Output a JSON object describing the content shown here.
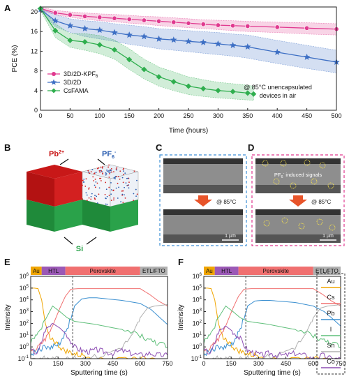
{
  "panels": {
    "A": "A",
    "B": "B",
    "C": "C",
    "D": "D",
    "E": "E",
    "F": "F"
  },
  "panelB": {
    "pb": "Pb",
    "pb_sup": "2+",
    "pf": "PF",
    "pf_sub": "6",
    "pf_sup": "-",
    "si": "Si"
  },
  "panelC": {
    "temp": "@ 85°C",
    "scale": "1 µm"
  },
  "panelD": {
    "signals": "PF",
    "signals_sub": "6",
    "signals_sup": "-",
    "signals_rest": " induced signals",
    "temp": "@ 85°C",
    "scale": "1 µm"
  },
  "colors": {
    "kpf6": "#e0398f",
    "twod": "#3d6fc4",
    "csfama": "#2fae4e",
    "au": "#f0a500",
    "cs": "#f07070",
    "pb": "#3a8fd0",
    "i": "#5fbf7a",
    "sn": "#b0b0b0",
    "co": "#8e4fb4"
  },
  "chart_data": [
    {
      "type": "line",
      "ylabel": "PCE (%)",
      "xlabel": "Time (hours)",
      "xlim": [
        0,
        500
      ],
      "ylim": [
        0,
        21
      ],
      "xticks": [
        0,
        50,
        100,
        150,
        200,
        250,
        300,
        350,
        400,
        450,
        500
      ],
      "yticks": [
        0,
        4,
        8,
        12,
        16,
        20
      ],
      "legend": [
        {
          "name": "3D/2D-KPF",
          "sub": "6"
        },
        {
          "name": "3D/2D",
          "sub": ""
        },
        {
          "name": "CsFAMA",
          "sub": ""
        }
      ],
      "annotation": [
        "@ 85°C unencapsulated",
        "devices in air"
      ],
      "series": [
        {
          "name": "3D/2D-KPF6",
          "x": [
            0,
            25,
            50,
            75,
            100,
            125,
            150,
            175,
            200,
            225,
            250,
            275,
            300,
            325,
            350,
            400,
            450,
            500
          ],
          "y": [
            20.7,
            19.8,
            19.4,
            19.1,
            18.9,
            18.7,
            18.5,
            18.3,
            18.1,
            17.9,
            17.7,
            17.5,
            17.3,
            17.2,
            17.1,
            16.9,
            16.7,
            16.5
          ],
          "lo": [
            20.4,
            19.4,
            18.9,
            18.5,
            18.2,
            18.0,
            17.7,
            17.5,
            17.2,
            17.0,
            16.8,
            16.6,
            16.4,
            16.2,
            16.0,
            15.8,
            15.5,
            15.3
          ],
          "hi": [
            21.0,
            20.3,
            20.0,
            19.8,
            19.6,
            19.5,
            19.3,
            19.1,
            19.0,
            18.8,
            18.6,
            18.4,
            18.3,
            18.2,
            18.1,
            17.9,
            17.8,
            17.6
          ]
        },
        {
          "name": "3D/2D",
          "x": [
            0,
            25,
            50,
            75,
            100,
            125,
            150,
            175,
            200,
            225,
            250,
            275,
            300,
            325,
            350,
            400,
            450,
            500
          ],
          "y": [
            20.5,
            18.2,
            17.2,
            16.6,
            16.3,
            15.8,
            15.3,
            15.0,
            14.5,
            14.3,
            14.0,
            13.8,
            13.5,
            13.2,
            12.9,
            11.8,
            10.8,
            9.8
          ],
          "lo": [
            20.2,
            17.0,
            15.8,
            15.0,
            14.5,
            14.0,
            13.4,
            13.0,
            12.5,
            12.2,
            11.9,
            11.6,
            11.3,
            11.0,
            10.6,
            9.5,
            8.5,
            7.6
          ],
          "hi": [
            20.8,
            19.4,
            18.6,
            18.2,
            18.0,
            17.6,
            17.3,
            17.0,
            16.6,
            16.4,
            16.2,
            16.0,
            15.8,
            15.5,
            15.3,
            14.2,
            13.2,
            12.2
          ]
        },
        {
          "name": "CsFAMA",
          "x": [
            0,
            25,
            50,
            75,
            100,
            125,
            150,
            175,
            200,
            225,
            250,
            275,
            300,
            325,
            350,
            360
          ],
          "y": [
            20.7,
            16.2,
            14.2,
            13.9,
            13.3,
            12.3,
            10.3,
            8.3,
            6.8,
            5.8,
            4.9,
            4.4,
            4.0,
            3.8,
            3.5,
            3.3
          ],
          "lo": [
            20.3,
            14.8,
            12.8,
            12.2,
            11.5,
            10.4,
            8.3,
            6.4,
            4.9,
            4.0,
            3.2,
            2.8,
            2.5,
            2.3,
            2.1,
            2.0
          ],
          "hi": [
            21.0,
            17.6,
            15.6,
            15.6,
            15.2,
            14.3,
            12.5,
            10.4,
            8.8,
            7.8,
            6.8,
            6.2,
            5.7,
            5.4,
            5.1,
            4.9
          ]
        }
      ]
    },
    {
      "type": "line",
      "ylabel": "Intensity",
      "xlabel": "Sputtering time (s)",
      "xlim": [
        0,
        750
      ],
      "ylim_log10": [
        -1,
        6
      ],
      "xticks": [
        0,
        150,
        300,
        450,
        600,
        750
      ],
      "regions": [
        {
          "label": "Au",
          "x0": 0,
          "x1": 60,
          "color": "#f0a500"
        },
        {
          "label": "HTL",
          "x0": 60,
          "x1": 190,
          "color": "#9b59b6"
        },
        {
          "label": "Perovskite",
          "x0": 190,
          "x1": 600,
          "color": "#f07070"
        },
        {
          "label": "ETL/FTO",
          "x0": 600,
          "x1": 750,
          "color": "#b0b0b0"
        }
      ],
      "divider_x": 230,
      "series": [
        {
          "name": "Au",
          "x": [
            0,
            20,
            40,
            60,
            80,
            100,
            140,
            180,
            220,
            260,
            300,
            400,
            500,
            600,
            700,
            750
          ],
          "y": [
            100000.0,
            100000.0,
            90000.0,
            10000.0,
            100.0,
            10,
            2,
            0.5,
            0.3,
            0.2,
            0.2,
            0.1,
            0.1,
            0.1,
            0.1,
            0.1
          ]
        },
        {
          "name": "Cs",
          "x": [
            0,
            40,
            80,
            120,
            160,
            190,
            220,
            260,
            300,
            400,
            500,
            600,
            650,
            700,
            750
          ],
          "y": [
            0.3,
            1,
            5,
            60,
            2000,
            20000.0,
            80000.0,
            90000.0,
            90000.0,
            90000.0,
            90000.0,
            90000.0,
            30000.0,
            8000,
            3000
          ]
        },
        {
          "name": "Pb",
          "x": [
            0,
            40,
            80,
            120,
            160,
            200,
            240,
            280,
            320,
            360,
            400,
            500,
            600,
            660,
            700,
            750
          ],
          "y": [
            0.2,
            0.5,
            1,
            1,
            2,
            30,
            3000,
            12000.0,
            15000.0,
            15000.0,
            13000.0,
            9000,
            5000,
            1500,
            400,
            80
          ]
        },
        {
          "name": "I",
          "x": [
            0,
            40,
            80,
            120,
            160,
            200,
            240,
            280,
            320,
            360,
            400,
            500,
            600,
            660,
            700,
            750
          ],
          "y": [
            3,
            10,
            200,
            3000,
            1000,
            300,
            150,
            120,
            100,
            80,
            60,
            30,
            10,
            3,
            2,
            1
          ]
        },
        {
          "name": "Sn",
          "x": [
            0,
            40,
            80,
            120,
            160,
            200,
            240,
            300,
            400,
            500,
            560,
            600,
            640,
            680,
            720,
            750
          ],
          "y": [
            0.1,
            0.1,
            0.1,
            0.1,
            0.1,
            0.1,
            0.1,
            0.1,
            0.2,
            1,
            10,
            300,
            2000,
            3000,
            3500,
            4000
          ]
        },
        {
          "name": "Co",
          "x": [
            0,
            40,
            80,
            120,
            160,
            200,
            240,
            280,
            320,
            360,
            400,
            450,
            500,
            550,
            600,
            650,
            700,
            750
          ],
          "y": [
            0.5,
            0.3,
            30,
            100,
            40,
            10,
            1,
            0.5,
            0.4,
            0.6,
            0.4,
            0.3,
            0.5,
            0.3,
            0.2,
            0.3,
            0.2,
            0.2
          ]
        }
      ]
    },
    {
      "type": "line",
      "ylabel": "Intensity",
      "xlabel": "Sputtering time (s)",
      "xlim": [
        0,
        750
      ],
      "ylim_log10": [
        -1,
        6
      ],
      "xticks": [
        0,
        150,
        300,
        450,
        600,
        750
      ],
      "regions": [
        {
          "label": "Au",
          "x0": 0,
          "x1": 60,
          "color": "#f0a500"
        },
        {
          "label": "HTL",
          "x0": 60,
          "x1": 190,
          "color": "#9b59b6"
        },
        {
          "label": "Perovskite",
          "x0": 190,
          "x1": 600,
          "color": "#f07070"
        },
        {
          "label": "ETL/FTO",
          "x0": 600,
          "x1": 750,
          "color": "#b0b0b0"
        }
      ],
      "divider_x": 230,
      "legend": [
        "Au",
        "Cs",
        "Pb",
        "I",
        "Sn",
        "Co"
      ],
      "series": [
        {
          "name": "Au",
          "x": [
            0,
            20,
            40,
            60,
            80,
            100,
            140,
            180,
            220,
            260,
            300,
            400,
            500,
            600,
            700,
            750
          ],
          "y": [
            100000.0,
            100000.0,
            90000.0,
            10000.0,
            100.0,
            10,
            2,
            0.5,
            0.3,
            0.2,
            0.2,
            0.1,
            0.1,
            0.1,
            0.1,
            0.1
          ]
        },
        {
          "name": "Cs",
          "x": [
            0,
            40,
            80,
            120,
            160,
            190,
            220,
            260,
            300,
            400,
            500,
            600,
            650,
            700,
            750
          ],
          "y": [
            0.3,
            1,
            5,
            60,
            2000,
            20000.0,
            80000.0,
            90000.0,
            90000.0,
            90000.0,
            90000.0,
            90000.0,
            30000.0,
            8000,
            3000
          ]
        },
        {
          "name": "Pb",
          "x": [
            0,
            40,
            80,
            120,
            160,
            200,
            240,
            280,
            320,
            360,
            400,
            500,
            600,
            660,
            700,
            750
          ],
          "y": [
            0.2,
            0.5,
            1,
            1,
            2,
            30,
            3000,
            8000,
            9000,
            9000,
            8000,
            6000,
            3000,
            1000,
            300,
            60
          ]
        },
        {
          "name": "I",
          "x": [
            0,
            40,
            80,
            120,
            160,
            200,
            240,
            280,
            320,
            360,
            400,
            500,
            600,
            660,
            700,
            750
          ],
          "y": [
            3,
            10,
            300,
            3000,
            1000,
            300,
            150,
            120,
            100,
            80,
            60,
            30,
            10,
            3,
            2,
            1
          ]
        },
        {
          "name": "Sn",
          "x": [
            0,
            40,
            80,
            120,
            160,
            200,
            240,
            300,
            400,
            500,
            560,
            600,
            640,
            680,
            720,
            750
          ],
          "y": [
            0.1,
            0.1,
            0.1,
            0.1,
            0.1,
            0.1,
            0.1,
            0.1,
            0.2,
            1,
            10,
            300,
            2000,
            3000,
            3500,
            4000
          ]
        },
        {
          "name": "Co",
          "x": [
            0,
            40,
            80,
            120,
            160,
            200,
            240,
            280,
            320,
            360,
            400,
            450,
            500,
            550,
            600,
            650,
            700,
            750
          ],
          "y": [
            0.5,
            0.3,
            20,
            60,
            20,
            5,
            0.5,
            0.3,
            0.2,
            0.3,
            0.2,
            0.2,
            0.3,
            0.2,
            0.1,
            0.2,
            0.1,
            0.1
          ]
        }
      ]
    }
  ]
}
